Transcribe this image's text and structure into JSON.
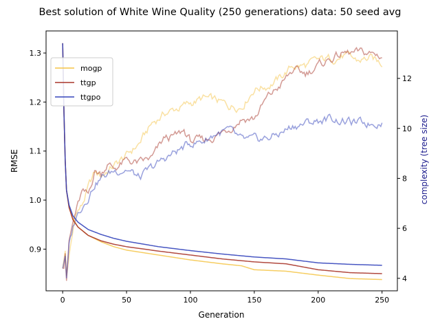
{
  "chart_data": {
    "type": "line",
    "title": "Best solution of White Wine Quality (250 generations) data: 50 seed avg",
    "xlabel": "Generation",
    "ylabel_left": "RMSE",
    "ylabel_right": "complexity (tree size)",
    "xlim": [
      -13,
      262
    ],
    "ylim_left": [
      0.815,
      1.345
    ],
    "ylim_right": [
      3.5,
      13.9
    ],
    "x_ticks": [
      "0",
      "50",
      "100",
      "150",
      "200",
      "250"
    ],
    "y_left_ticks": [
      "0.9",
      "1.0",
      "1.1",
      "1.2",
      "1.3"
    ],
    "y_right_ticks": [
      "4",
      "6",
      "8",
      "10",
      "12"
    ],
    "grid": false,
    "legend_position": "upper-left",
    "colors": {
      "mogp": "#f5c445",
      "ttgp": "#a8352a",
      "ttgpo": "#3344bb",
      "right_axis_label": "#1a1a8c"
    },
    "series": [
      {
        "name": "mogp",
        "rmse": [
          [
            0,
            1.32
          ],
          [
            1,
            1.18
          ],
          [
            2,
            1.08
          ],
          [
            3,
            1.02
          ],
          [
            5,
            0.985
          ],
          [
            8,
            0.962
          ],
          [
            12,
            0.945
          ],
          [
            20,
            0.928
          ],
          [
            30,
            0.915
          ],
          [
            40,
            0.905
          ],
          [
            50,
            0.898
          ],
          [
            75,
            0.888
          ],
          [
            100,
            0.878
          ],
          [
            125,
            0.87
          ],
          [
            140,
            0.866
          ],
          [
            150,
            0.858
          ],
          [
            175,
            0.855
          ],
          [
            200,
            0.847
          ],
          [
            225,
            0.84
          ],
          [
            250,
            0.838
          ]
        ],
        "complexity": [
          [
            0,
            4.4
          ],
          [
            2,
            5.1
          ],
          [
            3,
            4.1
          ],
          [
            5,
            4.8
          ],
          [
            8,
            5.8
          ],
          [
            10,
            6.6
          ],
          [
            15,
            6.9
          ],
          [
            20,
            7.6
          ],
          [
            25,
            8.2
          ],
          [
            30,
            8.1
          ],
          [
            40,
            8.5
          ],
          [
            50,
            8.9
          ],
          [
            60,
            9.4
          ],
          [
            70,
            10.2
          ],
          [
            80,
            10.6
          ],
          [
            90,
            10.8
          ],
          [
            100,
            11.0
          ],
          [
            110,
            11.2
          ],
          [
            120,
            11.1
          ],
          [
            130,
            10.9
          ],
          [
            140,
            10.9
          ],
          [
            150,
            11.6
          ],
          [
            160,
            11.7
          ],
          [
            170,
            12.0
          ],
          [
            180,
            12.5
          ],
          [
            190,
            12.5
          ],
          [
            200,
            12.7
          ],
          [
            210,
            12.8
          ],
          [
            220,
            12.9
          ],
          [
            230,
            12.7
          ],
          [
            240,
            12.8
          ],
          [
            250,
            12.6
          ]
        ]
      },
      {
        "name": "ttgp",
        "rmse": [
          [
            0,
            1.32
          ],
          [
            1,
            1.18
          ],
          [
            2,
            1.08
          ],
          [
            3,
            1.02
          ],
          [
            5,
            0.985
          ],
          [
            8,
            0.96
          ],
          [
            12,
            0.945
          ],
          [
            20,
            0.928
          ],
          [
            30,
            0.917
          ],
          [
            40,
            0.91
          ],
          [
            50,
            0.905
          ],
          [
            75,
            0.896
          ],
          [
            100,
            0.888
          ],
          [
            125,
            0.88
          ],
          [
            150,
            0.874
          ],
          [
            175,
            0.87
          ],
          [
            200,
            0.858
          ],
          [
            225,
            0.852
          ],
          [
            250,
            0.85
          ]
        ],
        "complexity": [
          [
            0,
            4.4
          ],
          [
            1,
            4.4
          ],
          [
            2,
            5.0
          ],
          [
            3,
            3.9
          ],
          [
            5,
            5.5
          ],
          [
            8,
            6.2
          ],
          [
            10,
            6.6
          ],
          [
            15,
            7.4
          ],
          [
            20,
            7.3
          ],
          [
            25,
            8.3
          ],
          [
            30,
            8.2
          ],
          [
            35,
            8.6
          ],
          [
            40,
            8.4
          ],
          [
            50,
            8.7
          ],
          [
            60,
            8.6
          ],
          [
            70,
            8.8
          ],
          [
            80,
            9.6
          ],
          [
            90,
            9.7
          ],
          [
            95,
            9.9
          ],
          [
            100,
            9.5
          ],
          [
            110,
            9.5
          ],
          [
            120,
            9.7
          ],
          [
            130,
            10.0
          ],
          [
            140,
            10.4
          ],
          [
            150,
            10.4
          ],
          [
            160,
            11.2
          ],
          [
            170,
            11.7
          ],
          [
            180,
            12.3
          ],
          [
            190,
            12.2
          ],
          [
            200,
            12.5
          ],
          [
            210,
            12.8
          ],
          [
            220,
            13.0
          ],
          [
            230,
            13.0
          ],
          [
            240,
            13.0
          ],
          [
            250,
            12.9
          ]
        ]
      },
      {
        "name": "ttgpo",
        "rmse": [
          [
            0,
            1.32
          ],
          [
            1,
            1.18
          ],
          [
            2,
            1.08
          ],
          [
            3,
            1.02
          ],
          [
            5,
            0.99
          ],
          [
            8,
            0.968
          ],
          [
            12,
            0.955
          ],
          [
            20,
            0.94
          ],
          [
            30,
            0.93
          ],
          [
            40,
            0.922
          ],
          [
            50,
            0.916
          ],
          [
            75,
            0.905
          ],
          [
            100,
            0.897
          ],
          [
            125,
            0.89
          ],
          [
            150,
            0.884
          ],
          [
            175,
            0.88
          ],
          [
            200,
            0.872
          ],
          [
            225,
            0.869
          ],
          [
            250,
            0.867
          ]
        ],
        "complexity": [
          [
            0,
            4.4
          ],
          [
            2,
            4.9
          ],
          [
            3,
            4.0
          ],
          [
            5,
            5.3
          ],
          [
            8,
            6.0
          ],
          [
            10,
            6.4
          ],
          [
            15,
            6.9
          ],
          [
            20,
            7.3
          ],
          [
            25,
            7.8
          ],
          [
            30,
            8.0
          ],
          [
            40,
            8.3
          ],
          [
            50,
            8.4
          ],
          [
            60,
            8.0
          ],
          [
            70,
            8.4
          ],
          [
            80,
            8.8
          ],
          [
            90,
            9.1
          ],
          [
            100,
            9.4
          ],
          [
            110,
            9.5
          ],
          [
            120,
            9.8
          ],
          [
            130,
            9.9
          ],
          [
            140,
            9.5
          ],
          [
            150,
            9.5
          ],
          [
            160,
            9.6
          ],
          [
            170,
            9.8
          ],
          [
            180,
            10.1
          ],
          [
            190,
            10.2
          ],
          [
            200,
            10.3
          ],
          [
            210,
            10.4
          ],
          [
            220,
            10.3
          ],
          [
            230,
            10.2
          ],
          [
            240,
            10.2
          ],
          [
            250,
            10.3
          ]
        ]
      }
    ]
  }
}
